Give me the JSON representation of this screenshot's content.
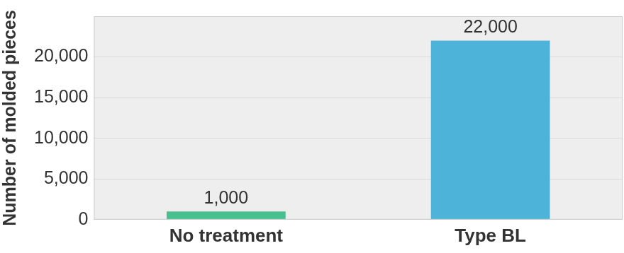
{
  "chart_data": {
    "type": "bar",
    "y_label": "Number of molded pieces",
    "categories": [
      "No treatment",
      "Type BL"
    ],
    "values": [
      1000,
      22000
    ],
    "value_labels": [
      "1,000",
      "22,000"
    ],
    "colors": [
      "#47bf8f",
      "#4eb3d9"
    ],
    "ylim": [
      0,
      25000
    ],
    "yticks": [
      0,
      {
        "value": 5000,
        "label": "5,000"
      },
      {
        "value": 10000,
        "label": "10,000"
      },
      {
        "value": 15000,
        "label": "15,000"
      },
      {
        "value": 20000,
        "label": "20,000"
      }
    ],
    "grid": true,
    "data_labels": true
  }
}
